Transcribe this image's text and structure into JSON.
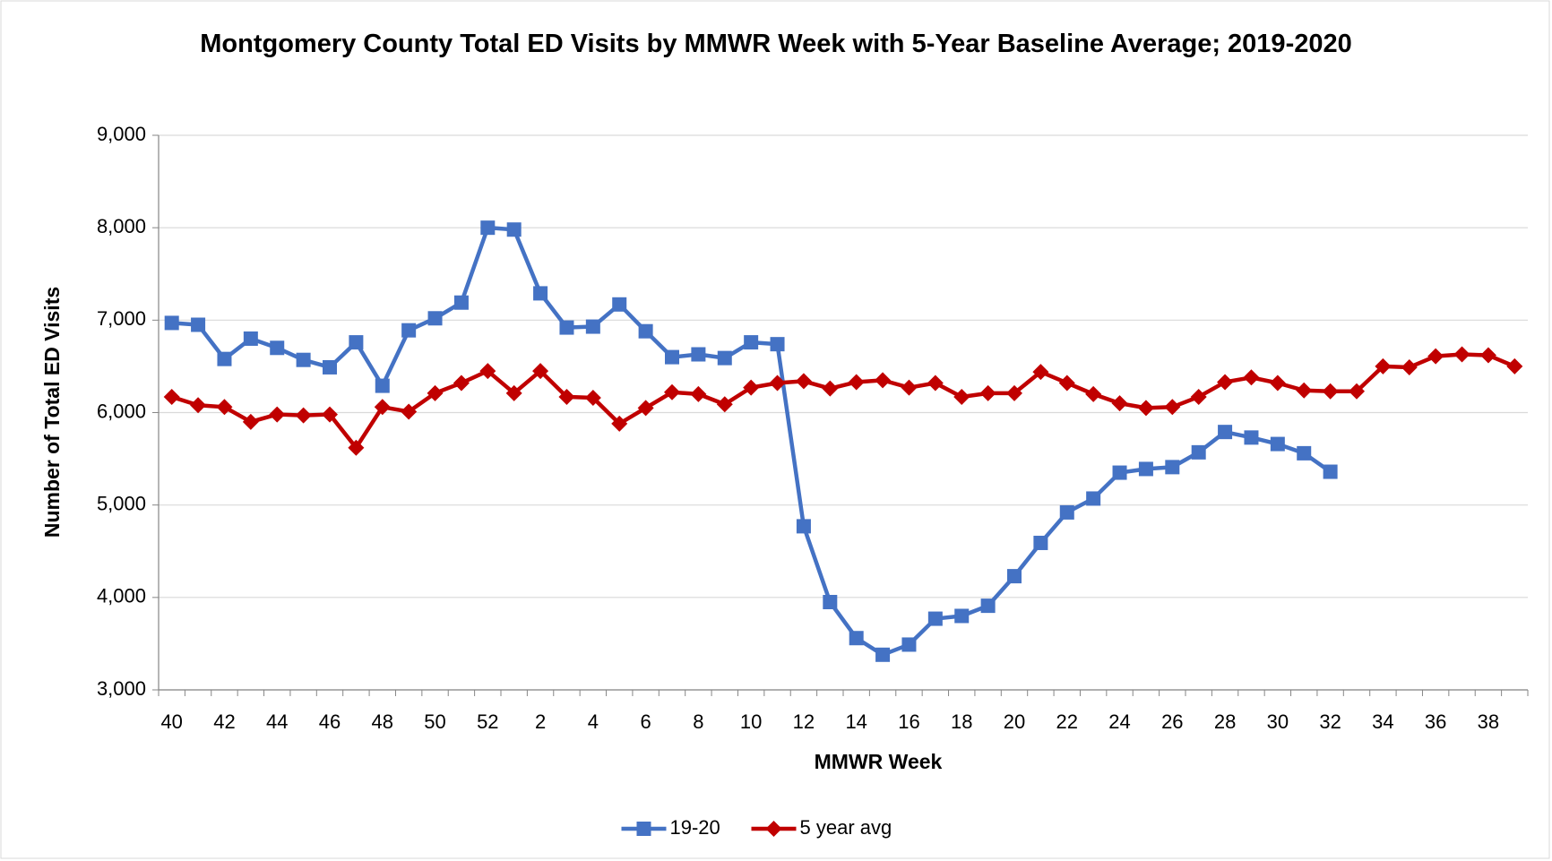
{
  "chart_data": {
    "type": "line",
    "title": "Montgomery County Total ED Visits by MMWR Week with 5-Year Baseline Average; 2019-2020",
    "x_label": "MMWR Week",
    "y_label": "Number of Total ED Visits",
    "categories": [
      "40",
      null,
      "42",
      null,
      "44",
      null,
      "46",
      null,
      "48",
      null,
      "50",
      null,
      "52",
      null,
      "2",
      null,
      "4",
      null,
      "6",
      null,
      "8",
      null,
      "10",
      null,
      "12",
      null,
      "14",
      null,
      "16",
      null,
      "18",
      null,
      "20",
      null,
      "22",
      null,
      "24",
      null,
      "26",
      null,
      "28",
      null,
      "30",
      null,
      "32",
      null,
      "34",
      null,
      "36",
      null,
      "38",
      null
    ],
    "series": [
      {
        "name": "19-20",
        "color": "#4472c4",
        "marker": "square",
        "values": [
          6970,
          6950,
          6580,
          6800,
          6700,
          6570,
          6490,
          6760,
          6290,
          6890,
          7020,
          7190,
          8000,
          7980,
          7290,
          6920,
          6930,
          7170,
          6880,
          6600,
          6630,
          6590,
          6760,
          6740,
          4770,
          3950,
          3560,
          3380,
          3490,
          3770,
          3800,
          3910,
          4230,
          4590,
          4920,
          5070,
          5350,
          5390,
          5410,
          5570,
          5790,
          5730,
          5660,
          5560,
          5360,
          null,
          null,
          null,
          null,
          null,
          null,
          null
        ]
      },
      {
        "name": "5 year avg",
        "color": "#c00000",
        "marker": "diamond",
        "values": [
          6170,
          6080,
          6060,
          5900,
          5980,
          5970,
          5980,
          5620,
          6060,
          6010,
          6210,
          6320,
          6450,
          6210,
          6450,
          6170,
          6160,
          5880,
          6050,
          6220,
          6200,
          6090,
          6270,
          6320,
          6340,
          6260,
          6330,
          6350,
          6270,
          6320,
          6170,
          6210,
          6210,
          6440,
          6320,
          6200,
          6100,
          6050,
          6060,
          6170,
          6330,
          6380,
          6320,
          6240,
          6230,
          6230,
          6500,
          6490,
          6610,
          6630,
          6620,
          6500
        ]
      }
    ],
    "ylim": [
      3000,
      9000
    ],
    "yticks": [
      {
        "value": 3000,
        "label": "3,000"
      },
      {
        "value": 4000,
        "label": "4,000"
      },
      {
        "value": 5000,
        "label": "5,000"
      },
      {
        "value": 6000,
        "label": "6,000"
      },
      {
        "value": 7000,
        "label": "7,000"
      },
      {
        "value": 8000,
        "label": "8,000"
      },
      {
        "value": 9000,
        "label": "9,000"
      }
    ],
    "grid": true,
    "legend": "bottom"
  }
}
